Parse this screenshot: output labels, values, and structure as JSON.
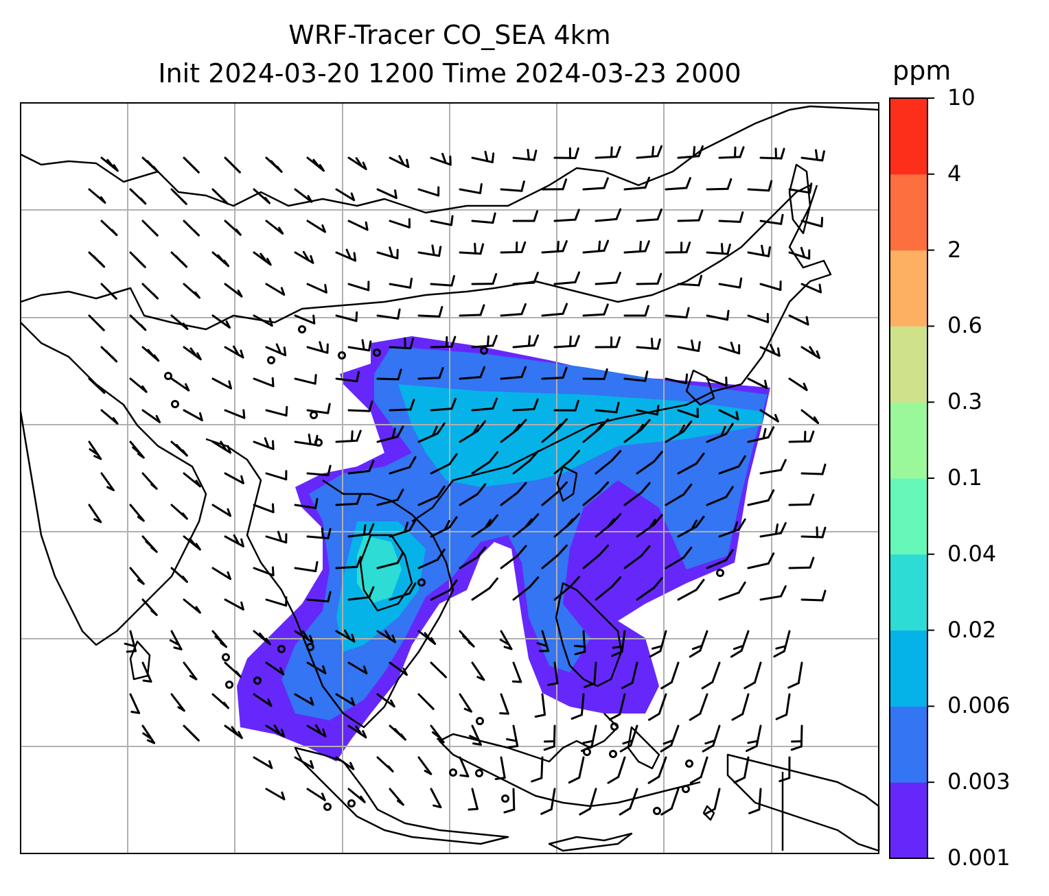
{
  "title": {
    "line1": "WRF-Tracer CO_SEA 4km",
    "line2": "Init 2024-03-20 1200 Time 2024-03-23 2000"
  },
  "colorbar": {
    "unit": "ppm",
    "ticks": [
      "0.001",
      "0.003",
      "0.006",
      "0.02",
      "0.04",
      "0.1",
      "0.3",
      "0.6",
      "2",
      "4",
      "10"
    ],
    "colors": [
      "#6628fa",
      "#3375f2",
      "#05b3e9",
      "#2ddcd4",
      "#66f8b9",
      "#9af89a",
      "#cfe28a",
      "#fdb062",
      "#fe6f3f",
      "#fe2f1a"
    ]
  },
  "map": {
    "gridlines": true,
    "tracer_field": "CO_SEA",
    "wind_barbs": true,
    "calm_markers": true
  }
}
